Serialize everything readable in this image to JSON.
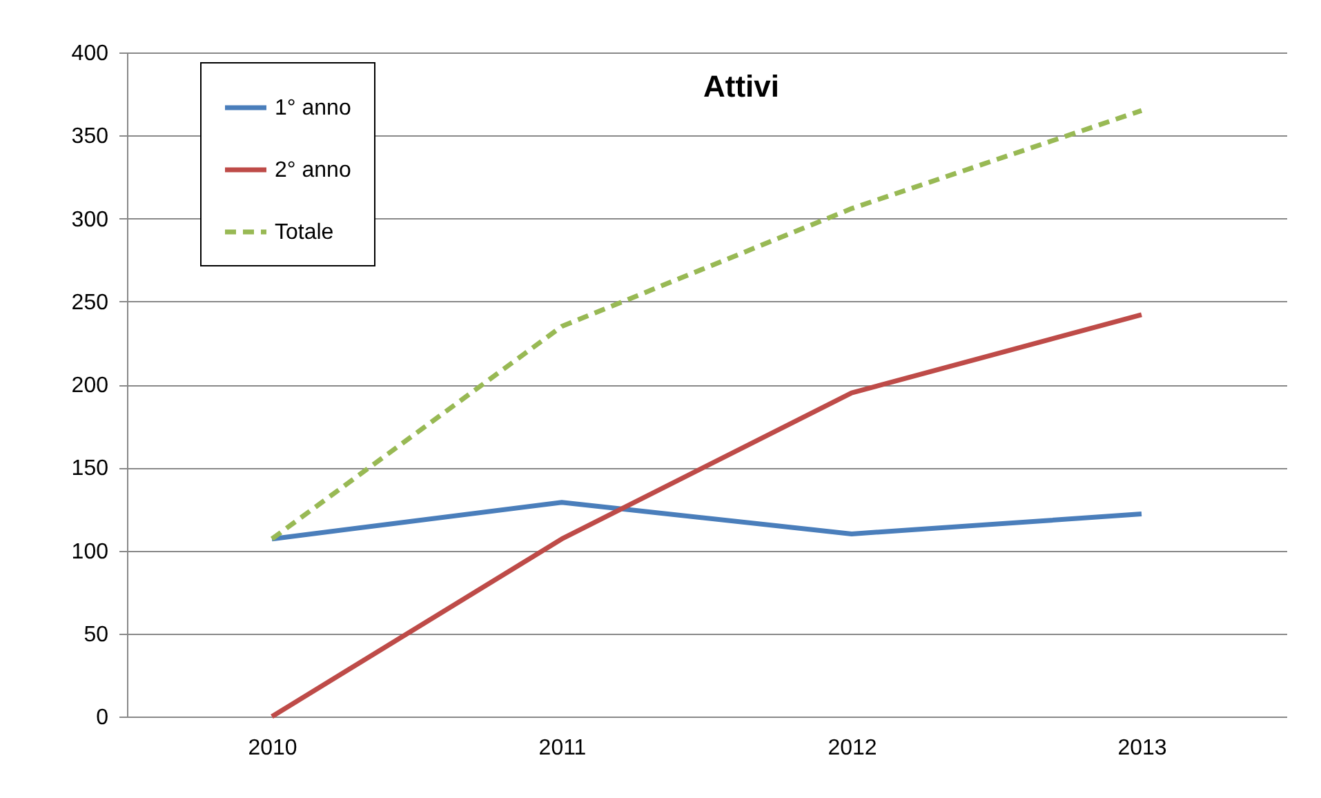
{
  "chart_data": {
    "type": "line",
    "title": "Attivi",
    "categories": [
      "2010",
      "2011",
      "2012",
      "2013"
    ],
    "series": [
      {
        "name": "1° anno",
        "color": "#4a7ebb",
        "values": [
          107,
          129,
          110,
          122
        ],
        "line_style": "solid"
      },
      {
        "name": "2° anno",
        "color": "#be4b48",
        "values": [
          0,
          107,
          195,
          242
        ],
        "line_style": "solid"
      },
      {
        "name": "Totale",
        "color": "#98b954",
        "values": [
          107,
          235,
          306,
          365
        ],
        "line_style": "dashed"
      }
    ],
    "ylim": [
      0,
      400
    ],
    "yticks": [
      0,
      50,
      100,
      150,
      200,
      250,
      300,
      350,
      400
    ],
    "grid": "y",
    "legend": "top left",
    "marker": "none"
  }
}
